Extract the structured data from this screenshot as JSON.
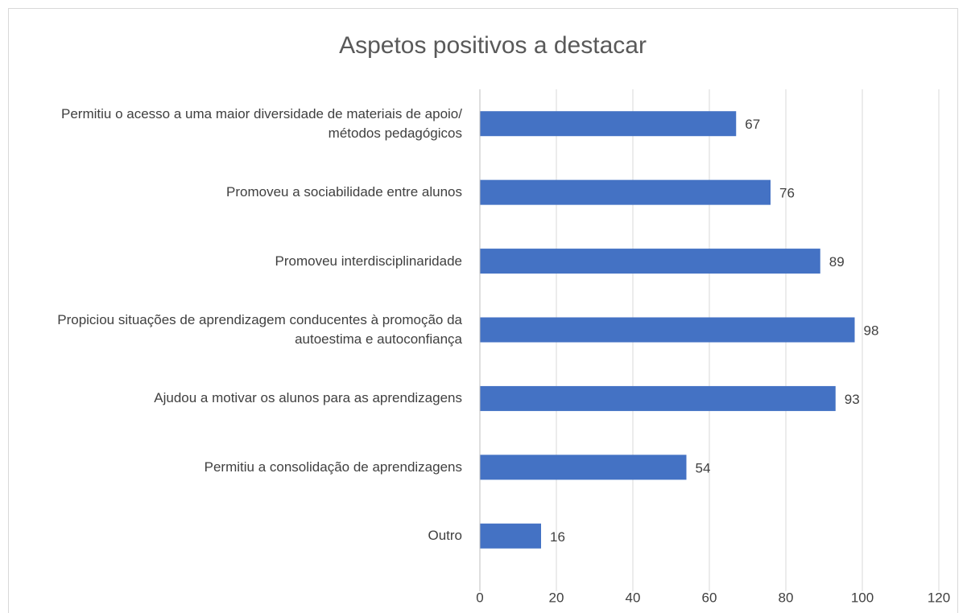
{
  "chart_data": {
    "type": "bar",
    "orientation": "horizontal",
    "title": "Aspetos positivos a destacar",
    "categories": [
      "Permitiu o acesso a uma maior diversidade de materiais de apoio/ métodos pedagógicos",
      "Promoveu a sociabilidade entre alunos",
      "Promoveu interdisciplinaridade ",
      "Propiciou situações de aprendizagem conducentes à promoção da autoestima e autoconfiança",
      "Ajudou a motivar os alunos para as aprendizagens",
      "Permitiu a consolidação de aprendizagens",
      "Outro"
    ],
    "values": [
      67,
      76,
      89,
      98,
      93,
      54,
      16
    ],
    "color": "#4472c4",
    "xlim": [
      0,
      120
    ],
    "xticks": [
      0,
      20,
      40,
      60,
      80,
      100,
      120
    ],
    "grid": true
  }
}
